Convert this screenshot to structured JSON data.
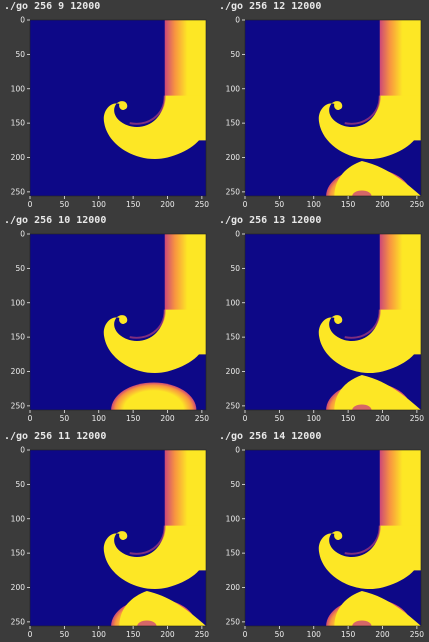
{
  "panels": [
    {
      "command": "./go 256 9 12000",
      "rows": 0
    },
    {
      "command": "./go 256 12 12000",
      "rows": 2
    },
    {
      "command": "./go 256 10 12000",
      "rows": 1
    },
    {
      "command": "./go 256 13 12000",
      "rows": 2
    },
    {
      "command": "./go 256 11 12000",
      "rows": 2
    },
    {
      "command": "./go 256 14 12000",
      "rows": 2
    }
  ],
  "axis": {
    "x_ticks": [
      "0",
      "50",
      "100",
      "150",
      "200",
      "250"
    ],
    "y_ticks": [
      "0",
      "50",
      "100",
      "150",
      "200",
      "250"
    ]
  },
  "colors": {
    "background": "#3b3b3b",
    "field_low": "#0d0887",
    "field_mid": "#cc4778",
    "field_high": "#fde725"
  }
}
